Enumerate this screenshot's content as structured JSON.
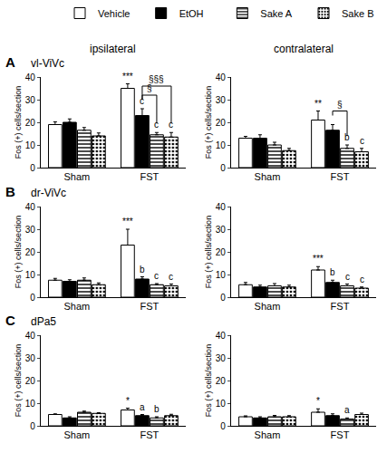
{
  "chart_data": [
    {
      "type": "bar",
      "panel": "A",
      "title": "vl-ViVc",
      "subtitle": "ipsilateral",
      "y_label": "Fos (+) cells/section",
      "categories": [
        "Sham",
        "FST"
      ],
      "ylim": [
        0,
        40
      ],
      "yticks": [
        0,
        10,
        20,
        30,
        40
      ],
      "grid": false,
      "legend": "top right",
      "series": [
        {
          "name": "Vehicle",
          "color": "#ffffff",
          "values": [
            19,
            35
          ],
          "error": [
            1.2,
            2
          ]
        },
        {
          "name": "EtOH",
          "color": "#000000",
          "values": [
            20,
            23
          ],
          "error": [
            1.5,
            3
          ]
        },
        {
          "name": "Sake A",
          "color": "#ffffff",
          "marker": "horizontal_stripes",
          "values": [
            16.5,
            14.5
          ],
          "error": [
            1.2,
            1
          ]
        },
        {
          "name": "Sake B",
          "color": "#ffffff",
          "marker": "dots",
          "values": [
            14,
            13.5
          ],
          "error": [
            1.3,
            2
          ]
        }
      ],
      "annotations": [
        {
          "category": "FST",
          "series": "Vehicle",
          "text": "***"
        },
        {
          "category": "FST",
          "series": "EtOH",
          "text": "c"
        },
        {
          "category": "FST",
          "series": "Sake A",
          "text": "c"
        },
        {
          "category": "FST",
          "series": "Sake B",
          "text": "c"
        },
        {
          "category": "FST",
          "from": "EtOH",
          "to": "Sake A",
          "text": "§"
        },
        {
          "category": "FST",
          "from": "EtOH",
          "to": "Sake B",
          "text": "§§§"
        }
      ]
    },
    {
      "type": "bar",
      "subtitle": "contralateral",
      "y_label": "Fos (+) cells/section",
      "categories": [
        "Sham",
        "FST"
      ],
      "ylim": [
        0,
        40
      ],
      "yticks": [
        0,
        10,
        20,
        30,
        40
      ],
      "grid": false,
      "series": [
        {
          "name": "Vehicle",
          "color": "#ffffff",
          "values": [
            13,
            21
          ],
          "error": [
            0.8,
            4
          ]
        },
        {
          "name": "EtOH",
          "color": "#000000",
          "values": [
            13,
            16.5
          ],
          "error": [
            1.5,
            2.5
          ]
        },
        {
          "name": "Sake A",
          "color": "#ffffff",
          "marker": "horizontal_stripes",
          "values": [
            10,
            8.5
          ],
          "error": [
            1.2,
            1.5
          ]
        },
        {
          "name": "Sake B",
          "color": "#ffffff",
          "marker": "dots",
          "values": [
            7.5,
            7
          ],
          "error": [
            1,
            1.5
          ]
        }
      ],
      "annotations": [
        {
          "category": "FST",
          "series": "Vehicle",
          "text": "**"
        },
        {
          "category": "FST",
          "series": "Sake A",
          "text": "b"
        },
        {
          "category": "FST",
          "series": "Sake B",
          "text": "c"
        },
        {
          "category": "FST",
          "from": "EtOH",
          "to": "Sake A",
          "text": "§"
        }
      ]
    },
    {
      "type": "bar",
      "panel": "B",
      "title": "dr-ViVc",
      "y_label": "Fos (+) cells/section",
      "categories": [
        "Sham",
        "FST"
      ],
      "ylim": [
        0,
        40
      ],
      "yticks": [
        0,
        10,
        20,
        30,
        40
      ],
      "grid": false,
      "series": [
        {
          "name": "Vehicle",
          "color": "#ffffff",
          "values": [
            7.5,
            23
          ],
          "error": [
            0.8,
            7
          ]
        },
        {
          "name": "EtOH",
          "color": "#000000",
          "values": [
            7,
            8
          ],
          "error": [
            0.7,
            1
          ]
        },
        {
          "name": "Sake A",
          "color": "#ffffff",
          "marker": "horizontal_stripes",
          "values": [
            7.5,
            5.5
          ],
          "error": [
            1,
            0.5
          ]
        },
        {
          "name": "Sake B",
          "color": "#ffffff",
          "marker": "dots",
          "values": [
            5.5,
            5
          ],
          "error": [
            0.8,
            0.8
          ]
        }
      ],
      "annotations": [
        {
          "category": "FST",
          "series": "Vehicle",
          "text": "***"
        },
        {
          "category": "FST",
          "series": "EtOH",
          "text": "b"
        },
        {
          "category": "FST",
          "series": "Sake A",
          "text": "c"
        },
        {
          "category": "FST",
          "series": "Sake B",
          "text": "c"
        }
      ]
    },
    {
      "type": "bar",
      "y_label": "Fos (+) cells/section",
      "categories": [
        "Sham",
        "FST"
      ],
      "ylim": [
        0,
        40
      ],
      "yticks": [
        0,
        10,
        20,
        30,
        40
      ],
      "grid": false,
      "series": [
        {
          "name": "Vehicle",
          "color": "#ffffff",
          "values": [
            5.5,
            12
          ],
          "error": [
            1,
            1.5
          ]
        },
        {
          "name": "EtOH",
          "color": "#000000",
          "values": [
            4.5,
            6.5
          ],
          "error": [
            0.8,
            1
          ]
        },
        {
          "name": "Sake A",
          "color": "#ffffff",
          "marker": "horizontal_stripes",
          "values": [
            5,
            5
          ],
          "error": [
            1,
            0.8
          ]
        },
        {
          "name": "Sake B",
          "color": "#ffffff",
          "marker": "dots",
          "values": [
            4.5,
            4
          ],
          "error": [
            0.8,
            0.5
          ]
        }
      ],
      "annotations": [
        {
          "category": "FST",
          "series": "Vehicle",
          "text": "***"
        },
        {
          "category": "FST",
          "series": "EtOH",
          "text": "b"
        },
        {
          "category": "FST",
          "series": "Sake A",
          "text": "c"
        },
        {
          "category": "FST",
          "series": "Sake B",
          "text": "c"
        }
      ]
    },
    {
      "type": "bar",
      "panel": "C",
      "title": "dPa5",
      "y_label": "Fos (+) cells/section",
      "categories": [
        "Sham",
        "FST"
      ],
      "ylim": [
        0,
        40
      ],
      "yticks": [
        0,
        10,
        20,
        30,
        40
      ],
      "grid": false,
      "series": [
        {
          "name": "Vehicle",
          "color": "#ffffff",
          "values": [
            5,
            7
          ],
          "error": [
            0.3,
            0.8
          ]
        },
        {
          "name": "EtOH",
          "color": "#000000",
          "values": [
            3.5,
            4.5
          ],
          "error": [
            0.5,
            0.5
          ]
        },
        {
          "name": "Sake A",
          "color": "#ffffff",
          "marker": "horizontal_stripes",
          "values": [
            6,
            3.5
          ],
          "error": [
            0.5,
            0.5
          ]
        },
        {
          "name": "Sake B",
          "color": "#ffffff",
          "marker": "dots",
          "values": [
            5.5,
            4.5
          ],
          "error": [
            0.3,
            0.6
          ]
        }
      ],
      "annotations": [
        {
          "category": "FST",
          "series": "Vehicle",
          "text": "*"
        },
        {
          "category": "FST",
          "series": "EtOH",
          "text": "a"
        },
        {
          "category": "FST",
          "series": "Sake A",
          "text": "b"
        }
      ]
    },
    {
      "type": "bar",
      "y_label": "Fos (+) cells/section",
      "categories": [
        "Sham",
        "FST"
      ],
      "ylim": [
        0,
        40
      ],
      "yticks": [
        0,
        10,
        20,
        30,
        40
      ],
      "grid": false,
      "series": [
        {
          "name": "Vehicle",
          "color": "#ffffff",
          "values": [
            4,
            6
          ],
          "error": [
            0.4,
            1.5
          ]
        },
        {
          "name": "EtOH",
          "color": "#000000",
          "values": [
            3.5,
            4.5
          ],
          "error": [
            0.5,
            0.8
          ]
        },
        {
          "name": "Sake A",
          "color": "#ffffff",
          "marker": "horizontal_stripes",
          "values": [
            4,
            3
          ],
          "error": [
            0.6,
            0.5
          ]
        },
        {
          "name": "Sake B",
          "color": "#ffffff",
          "marker": "dots",
          "values": [
            4,
            5
          ],
          "error": [
            0.5,
            0.6
          ]
        }
      ],
      "annotations": [
        {
          "category": "FST",
          "series": "Vehicle",
          "text": "*"
        },
        {
          "category": "FST",
          "series": "Sake A",
          "text": "a"
        }
      ]
    }
  ]
}
